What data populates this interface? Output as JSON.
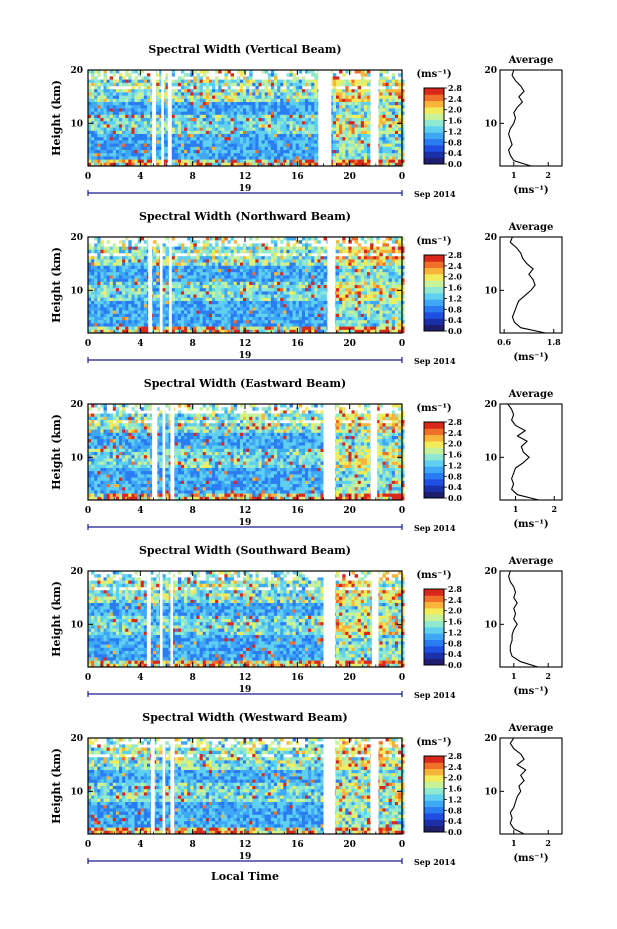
{
  "figure": {
    "x_axis_title": "Local Time",
    "y_axis_title": "Height (km)",
    "date_label": "Sep 2014",
    "colorbar_unit": "(ms⁻¹)",
    "colorbar_ticks": [
      "0.0",
      "0.4",
      "0.8",
      "1.2",
      "1.6",
      "2.0",
      "2.4",
      "2.8"
    ],
    "colors": {
      "colormap": [
        "#1f1e6e",
        "#1a2fa8",
        "#1f4fe0",
        "#2a7cf2",
        "#3fa8f5",
        "#5fd0f0",
        "#8fe8d0",
        "#c8f29a",
        "#f2ec5a",
        "#f8b53a",
        "#f0702a",
        "#d8281c"
      ],
      "gap": "#ffffff",
      "axis": "#000000",
      "date_line": "#1a1a8c"
    }
  },
  "chart_data": [
    {
      "type": "heatmap",
      "title": "Spectral Width (Vertical Beam)",
      "xlabel": "",
      "ylabel": "Height (km)",
      "x_ticks": [
        "0",
        "4",
        "8",
        "12",
        "16",
        "20",
        "0"
      ],
      "y_ticks": [
        "10",
        "20"
      ],
      "date_marks": [
        "19"
      ],
      "xlim": [
        0,
        24
      ],
      "ylim": [
        2,
        20
      ],
      "colorbar": {
        "label": "(ms⁻¹)",
        "range": [
          0.0,
          2.8
        ],
        "ticks": [
          "0.0",
          "0.4",
          "0.8",
          "1.2",
          "1.6",
          "2.0",
          "2.4",
          "2.8"
        ]
      },
      "data_gaps_hours": [
        [
          4.9,
          5.2
        ],
        [
          5.6,
          5.8
        ],
        [
          6.1,
          6.4
        ],
        [
          17.6,
          18.6
        ],
        [
          21.6,
          22.2
        ]
      ],
      "profile": {
        "title": "Average",
        "xlabel": "(ms⁻¹)",
        "x_ticks": [
          "1",
          "2"
        ],
        "xlim": [
          0.6,
          2.4
        ],
        "y_ticks": [
          "10",
          "20"
        ],
        "ylim": [
          2,
          20
        ],
        "heights_km": [
          2,
          3,
          4,
          5,
          6,
          7,
          8,
          9,
          10,
          11,
          12,
          13,
          14,
          15,
          16,
          17,
          18,
          19,
          20
        ],
        "values": [
          1.5,
          1.0,
          0.9,
          0.85,
          0.95,
          0.9,
          0.85,
          0.9,
          1.0,
          1.05,
          1.0,
          1.1,
          1.25,
          1.15,
          1.3,
          1.2,
          1.05,
          0.95,
          1.0
        ]
      }
    },
    {
      "type": "heatmap",
      "title": "Spectral Width (Northward Beam)",
      "xlabel": "",
      "ylabel": "Height (km)",
      "x_ticks": [
        "0",
        "4",
        "8",
        "12",
        "16",
        "20",
        "0"
      ],
      "y_ticks": [
        "10",
        "20"
      ],
      "date_marks": [
        "19"
      ],
      "xlim": [
        0,
        24
      ],
      "ylim": [
        2,
        20
      ],
      "colorbar": {
        "label": "(ms⁻¹)",
        "range": [
          0.0,
          2.8
        ],
        "ticks": [
          "0.0",
          "0.4",
          "0.8",
          "1.2",
          "1.6",
          "2.0",
          "2.4",
          "2.8"
        ]
      },
      "data_gaps_hours": [
        [
          4.6,
          4.9
        ],
        [
          5.5,
          5.7
        ],
        [
          6.2,
          6.4
        ],
        [
          18.3,
          18.9
        ]
      ],
      "profile": {
        "title": "Average",
        "xlabel": "(ms⁻¹)",
        "x_ticks": [
          "0.6",
          "1.8"
        ],
        "xlim": [
          0.5,
          2.0
        ],
        "y_ticks": [
          "10",
          "20"
        ],
        "ylim": [
          2,
          20
        ],
        "heights_km": [
          2,
          3,
          4,
          5,
          6,
          7,
          8,
          9,
          10,
          11,
          12,
          13,
          14,
          15,
          16,
          17,
          18,
          19,
          20
        ],
        "values": [
          1.6,
          1.0,
          0.85,
          0.8,
          0.85,
          0.9,
          0.95,
          1.1,
          1.25,
          1.35,
          1.3,
          1.2,
          1.3,
          1.15,
          1.05,
          1.0,
          0.9,
          0.75,
          0.8
        ]
      }
    },
    {
      "type": "heatmap",
      "title": "Spectral Width (Eastward Beam)",
      "xlabel": "",
      "ylabel": "Height (km)",
      "x_ticks": [
        "0",
        "4",
        "8",
        "12",
        "16",
        "20",
        "0"
      ],
      "y_ticks": [
        "10",
        "20"
      ],
      "date_marks": [
        "19"
      ],
      "xlim": [
        0,
        24
      ],
      "ylim": [
        2,
        20
      ],
      "colorbar": {
        "label": "(ms⁻¹)",
        "range": [
          0.0,
          2.8
        ],
        "ticks": [
          "0.0",
          "0.4",
          "0.8",
          "1.2",
          "1.6",
          "2.0",
          "2.4",
          "2.8"
        ]
      },
      "data_gaps_hours": [
        [
          4.9,
          5.3
        ],
        [
          5.7,
          5.9
        ],
        [
          6.3,
          6.6
        ],
        [
          18.0,
          18.9
        ],
        [
          21.6,
          22.1
        ]
      ],
      "profile": {
        "title": "Average",
        "xlabel": "(ms⁻¹)",
        "x_ticks": [
          "1",
          "2"
        ],
        "xlim": [
          0.6,
          2.2
        ],
        "y_ticks": [
          "10",
          "20"
        ],
        "ylim": [
          2,
          20
        ],
        "heights_km": [
          2,
          3,
          4,
          5,
          6,
          7,
          8,
          9,
          10,
          11,
          12,
          13,
          14,
          15,
          16,
          17,
          18,
          19,
          20
        ],
        "values": [
          1.6,
          1.05,
          0.9,
          0.95,
          0.9,
          0.95,
          1.0,
          1.2,
          1.35,
          1.2,
          1.15,
          1.3,
          1.05,
          1.25,
          1.0,
          0.9,
          0.95,
          0.9,
          0.8
        ]
      }
    },
    {
      "type": "heatmap",
      "title": "Spectral Width (Southward Beam)",
      "xlabel": "",
      "ylabel": "Height (km)",
      "x_ticks": [
        "0",
        "4",
        "8",
        "12",
        "16",
        "20",
        "0"
      ],
      "y_ticks": [
        "10",
        "20"
      ],
      "date_marks": [
        "19"
      ],
      "xlim": [
        0,
        24
      ],
      "ylim": [
        2,
        20
      ],
      "colorbar": {
        "label": "(ms⁻¹)",
        "range": [
          0.0,
          2.8
        ],
        "ticks": [
          "0.0",
          "0.4",
          "0.8",
          "1.2",
          "1.6",
          "2.0",
          "2.4",
          "2.8"
        ]
      },
      "data_gaps_hours": [
        [
          4.5,
          4.8
        ],
        [
          5.5,
          5.7
        ],
        [
          6.3,
          6.5
        ],
        [
          18.0,
          18.9
        ],
        [
          21.7,
          22.2
        ]
      ],
      "profile": {
        "title": "Average",
        "xlabel": "(ms⁻¹)",
        "x_ticks": [
          "1",
          "2"
        ],
        "xlim": [
          0.6,
          2.4
        ],
        "y_ticks": [
          "10",
          "20"
        ],
        "ylim": [
          2,
          20
        ],
        "heights_km": [
          2,
          3,
          4,
          5,
          6,
          7,
          8,
          9,
          10,
          11,
          12,
          13,
          14,
          15,
          16,
          17,
          18,
          19,
          20
        ],
        "values": [
          1.7,
          1.2,
          0.95,
          0.9,
          0.9,
          0.95,
          0.95,
          1.0,
          1.1,
          1.0,
          1.05,
          1.0,
          1.1,
          1.0,
          1.05,
          1.0,
          0.9,
          0.85,
          0.9
        ]
      }
    },
    {
      "type": "heatmap",
      "title": "Spectral Width (Westward Beam)",
      "xlabel": "Local Time",
      "ylabel": "Height (km)",
      "x_ticks": [
        "0",
        "4",
        "8",
        "12",
        "16",
        "20",
        "0"
      ],
      "y_ticks": [
        "10",
        "20"
      ],
      "date_marks": [
        "19"
      ],
      "xlim": [
        0,
        24
      ],
      "ylim": [
        2,
        20
      ],
      "colorbar": {
        "label": "(ms⁻¹)",
        "range": [
          0.0,
          2.8
        ],
        "ticks": [
          "0.0",
          "0.4",
          "0.8",
          "1.2",
          "1.6",
          "2.0",
          "2.4",
          "2.8"
        ]
      },
      "data_gaps_hours": [
        [
          4.8,
          5.1
        ],
        [
          5.7,
          5.9
        ],
        [
          6.3,
          6.6
        ],
        [
          18.0,
          18.9
        ],
        [
          21.6,
          22.2
        ]
      ],
      "profile": {
        "title": "Average",
        "xlabel": "(ms⁻¹)",
        "x_ticks": [
          "1",
          "2"
        ],
        "xlim": [
          0.6,
          2.4
        ],
        "y_ticks": [
          "10",
          "20"
        ],
        "ylim": [
          2,
          20
        ],
        "heights_km": [
          2,
          3,
          4,
          5,
          6,
          7,
          8,
          9,
          10,
          11,
          12,
          13,
          14,
          15,
          16,
          17,
          18,
          19,
          20
        ],
        "values": [
          1.3,
          1.0,
          0.9,
          0.95,
          0.9,
          1.0,
          1.05,
          1.1,
          1.2,
          1.15,
          1.3,
          1.2,
          1.35,
          1.1,
          1.3,
          1.2,
          1.0,
          0.9,
          1.0
        ]
      }
    }
  ]
}
